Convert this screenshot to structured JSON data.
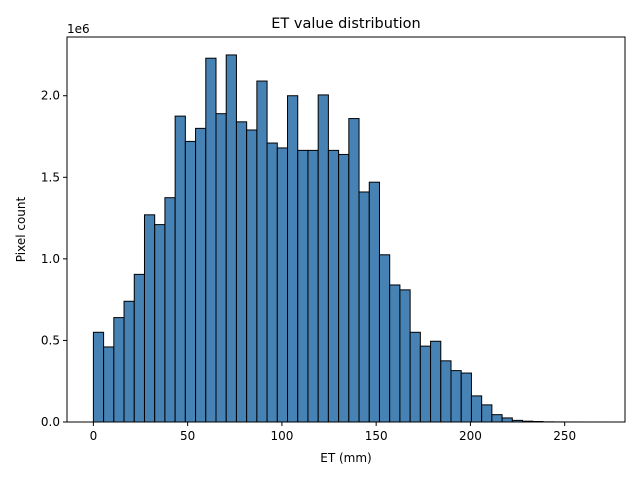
{
  "chart_data": {
    "type": "bar",
    "title": "ET value distribution",
    "xlabel": "ET (mm)",
    "ylabel": "Pixel count",
    "y_offset_label": "1e6",
    "bar_color": "#4682b4",
    "edge_color": "#000000",
    "xlim": [
      -14,
      282
    ],
    "ylim": [
      0,
      2360000
    ],
    "bin_width": 5.42,
    "bin_start": 0,
    "x_ticks": [
      0,
      50,
      100,
      150,
      200,
      250
    ],
    "x_tick_labels": [
      "0",
      "50",
      "100",
      "150",
      "200",
      "250"
    ],
    "y_ticks": [
      0,
      500000,
      1000000,
      1500000,
      2000000
    ],
    "y_tick_labels": [
      "0.0",
      "0.5",
      "1.0",
      "1.5",
      "2.0"
    ],
    "grid": false,
    "values": [
      550000,
      460000,
      640000,
      740000,
      905000,
      1270000,
      1210000,
      1375000,
      1875000,
      1720000,
      1800000,
      2230000,
      1890000,
      2250000,
      1840000,
      1790000,
      2090000,
      1710000,
      1680000,
      2000000,
      1665000,
      1665000,
      2005000,
      1665000,
      1640000,
      1860000,
      1410000,
      1470000,
      1025000,
      840000,
      810000,
      550000,
      465000,
      495000,
      375000,
      315000,
      300000,
      160000,
      105000,
      45000,
      25000,
      10000,
      5000,
      3000,
      1000,
      500,
      300,
      200,
      100,
      50
    ]
  }
}
